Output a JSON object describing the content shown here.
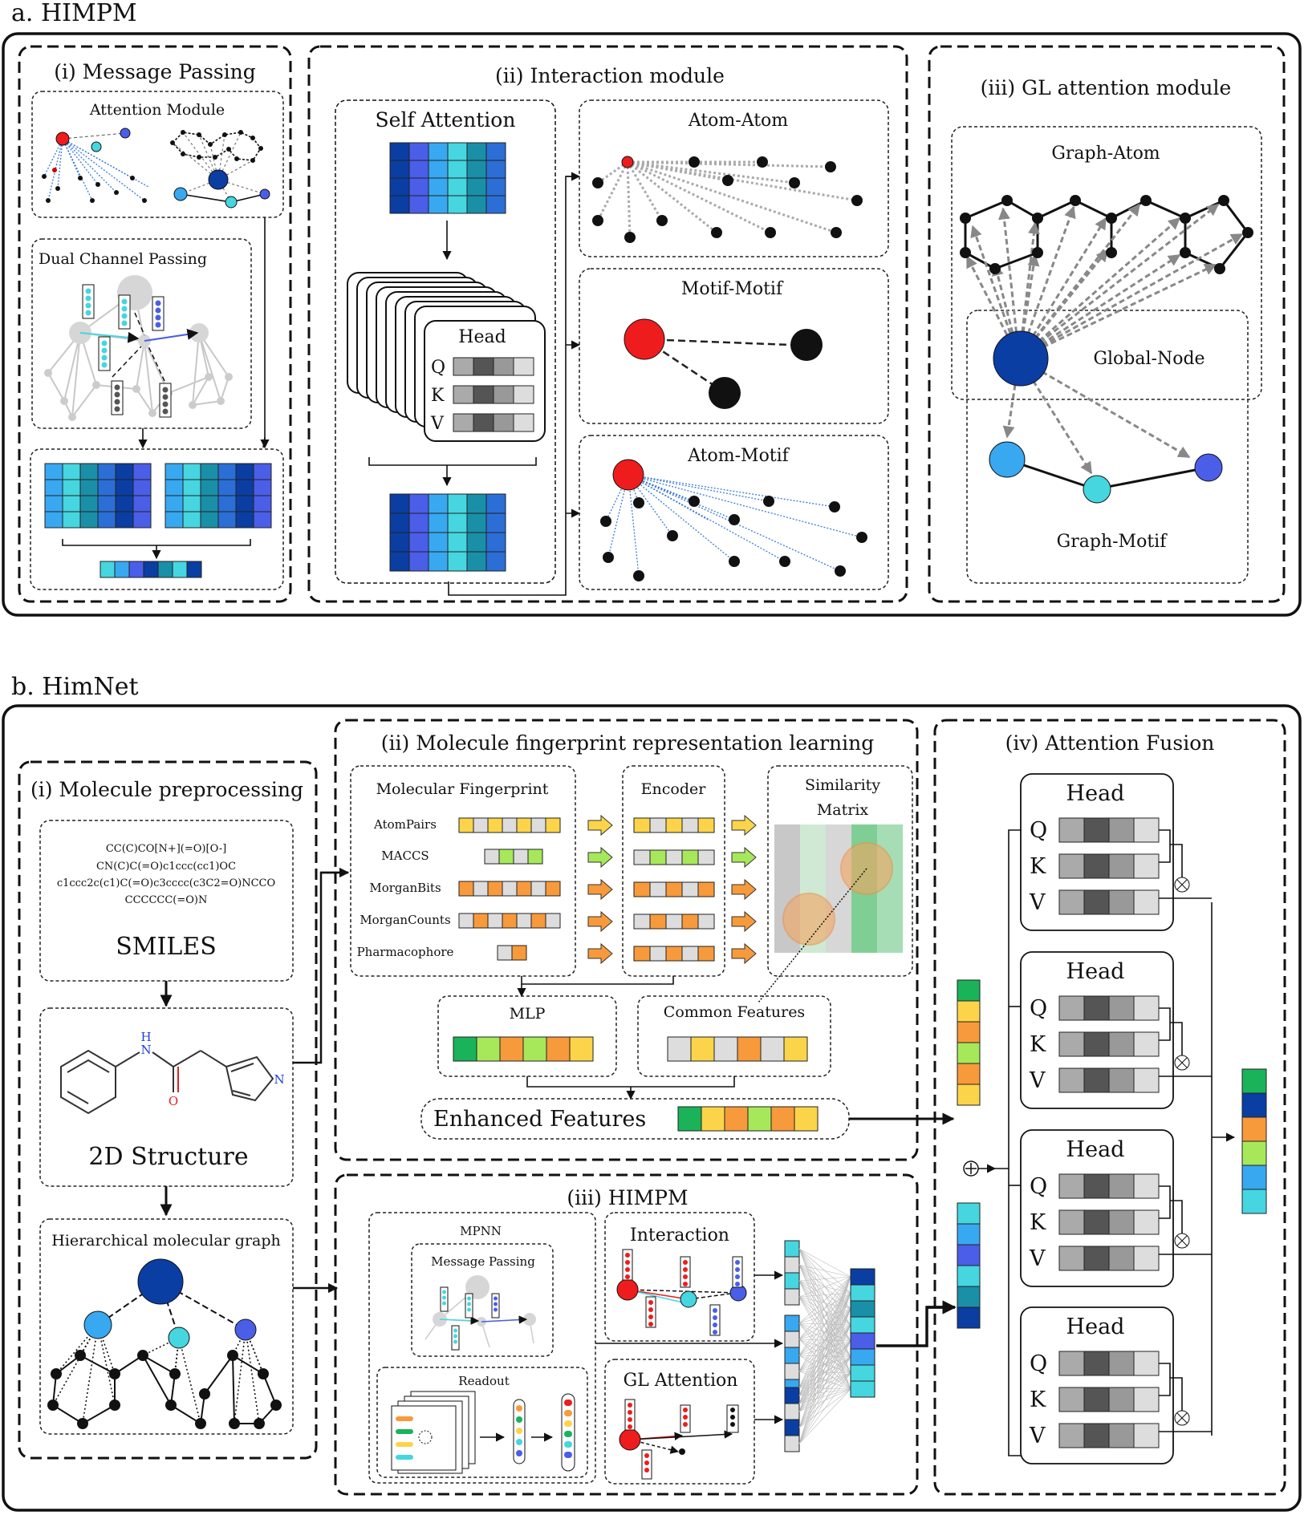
{
  "panel_a": {
    "title": "a. HIMPM",
    "message_passing": {
      "title": "(i) Message Passing",
      "attention_module": "Attention Module",
      "dual_channel": "Dual Channel Passing"
    },
    "interaction": {
      "title": "(ii) Interaction module",
      "self_attention": "Self Attention",
      "head": "Head",
      "q": "Q",
      "k": "K",
      "v": "V",
      "atom_atom": "Atom-Atom",
      "motif_motif": "Motif-Motif",
      "atom_motif": "Atom-Motif"
    },
    "gl_attention": {
      "title": "(iii) GL attention module",
      "graph_atom": "Graph-Atom",
      "global_node": "Global-Node",
      "graph_motif": "Graph-Motif"
    }
  },
  "panel_b": {
    "title": "b. HimNet",
    "preprocessing": {
      "title": "(i) Molecule preprocessing",
      "smiles_lines": [
        "CC(C)CO[N+](=O)[O-]",
        "CN(C)C(=O)c1ccc(cc1)OC",
        "c1ccc2c(c1)C(=O)c3cccc(c3C2=O)NCCO",
        "CCCCCC(=O)N"
      ],
      "smiles_label": "SMILES",
      "structure_label": "2D Structure",
      "atom_n_h": "N",
      "atom_h": "H",
      "atom_o": "O",
      "atom_n": "N",
      "graph_label": "Hierarchical molecular graph"
    },
    "fingerprint": {
      "title": "(ii) Molecule fingerprint representation learning",
      "mol_fp": "Molecular Fingerprint",
      "fps": [
        "AtomPairs",
        "MACCS",
        "MorganBits",
        "MorganCounts",
        "Pharmacophore"
      ],
      "encoder": "Encoder",
      "similarity_l1": "Similarity",
      "similarity_l2": "Matrix",
      "mlp": "MLP",
      "common": "Common Features",
      "enhanced": "Enhanced Features"
    },
    "himpm": {
      "title": "(iii) HIMPM",
      "mpnn": "MPNN",
      "message_passing": "Message Passing",
      "readout": "Readout",
      "interaction": "Interaction",
      "gl_attention": "GL Attention"
    },
    "fusion": {
      "title": "(iv) Attention Fusion",
      "head": "Head",
      "q": "Q",
      "k": "K",
      "v": "V"
    }
  },
  "colors": {
    "red": "#ee1c1c",
    "navy": "#0a3ea3",
    "cyan": "#45d6e0",
    "sky": "#38a8f0",
    "blue": "#4a5ee8",
    "teal": "#1a8fa8",
    "green": "#1ab35a",
    "yellow": "#fbd44a",
    "orange": "#f79a3c",
    "lime": "#a6e85a"
  }
}
